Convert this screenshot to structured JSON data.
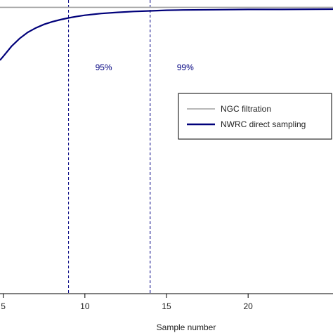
{
  "chart_data": {
    "type": "line",
    "xlabel": "Sample number",
    "ylabel": "",
    "title": "",
    "xlim": [
      4.8,
      25.2
    ],
    "ylim": [
      0.0,
      1.0
    ],
    "x_ticks": [
      5,
      10,
      15,
      20
    ],
    "x_tick_labels": [
      "5",
      "10",
      "15",
      "20"
    ],
    "grid": false,
    "legend_position": "center-right",
    "series": [
      {
        "name": "NGC filtration",
        "color": "#a0a0a0",
        "kind": "constant",
        "y": 0.975
      },
      {
        "name": "NWRC direct sampling",
        "color": "#00007a",
        "kind": "curve",
        "x": [
          4.8,
          5,
          5.5,
          6,
          6.5,
          7,
          7.5,
          8,
          8.5,
          9,
          9.5,
          10,
          11,
          12,
          13,
          14,
          15,
          16,
          18,
          20,
          22,
          25.2
        ],
        "y": [
          0.795,
          0.808,
          0.842,
          0.869,
          0.89,
          0.905,
          0.917,
          0.926,
          0.933,
          0.939,
          0.944,
          0.948,
          0.954,
          0.958,
          0.961,
          0.963,
          0.965,
          0.966,
          0.967,
          0.968,
          0.968,
          0.969
        ]
      }
    ],
    "vlines": [
      {
        "x": 9,
        "label": "95%",
        "color": "#000080"
      },
      {
        "x": 14,
        "label": "99%",
        "color": "#000080"
      }
    ]
  }
}
